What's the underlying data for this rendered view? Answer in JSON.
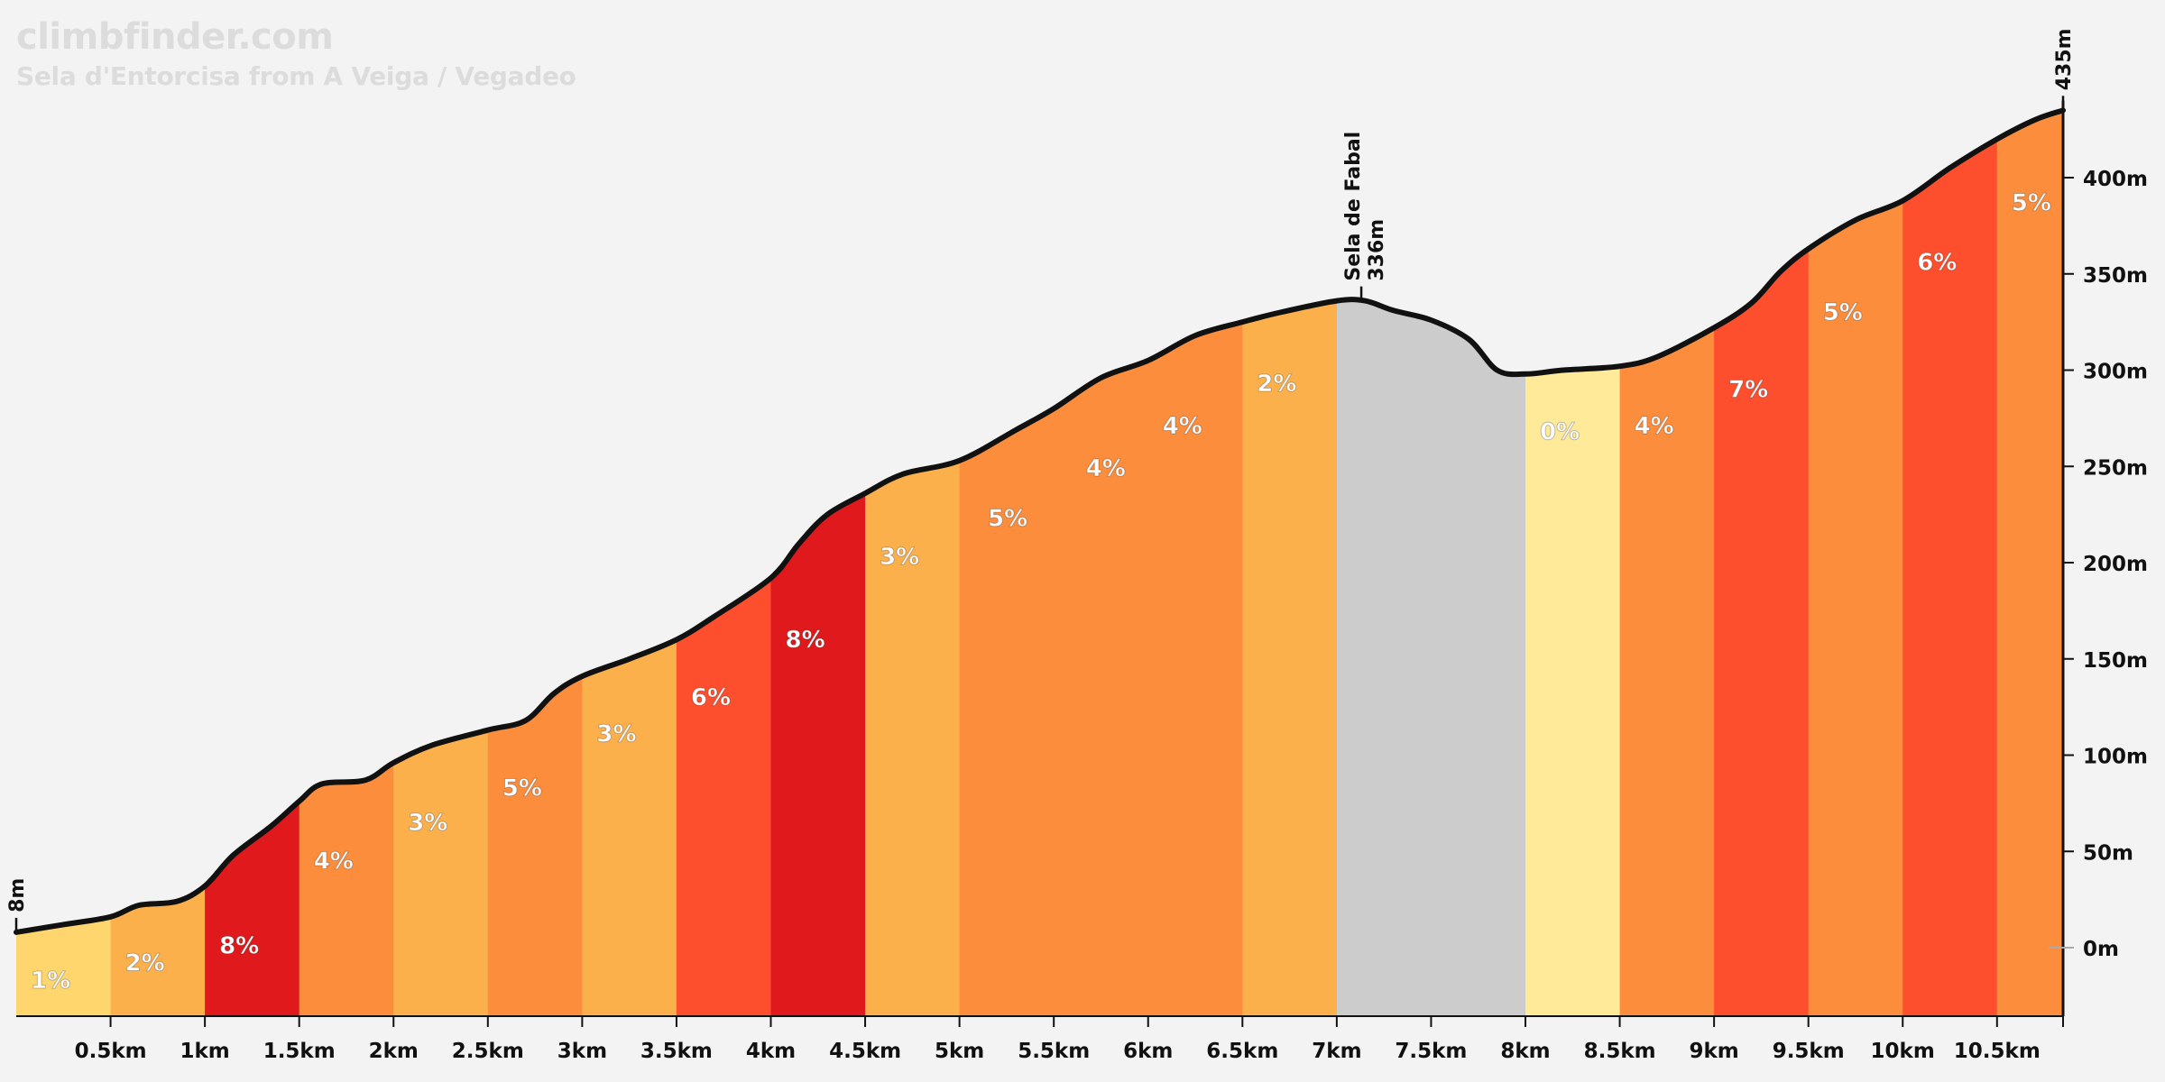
{
  "brand": "climbfinder.com",
  "subtitle": "Sela d'Entorcisa from A Veiga / Vegadeo",
  "chart_data": {
    "type": "area",
    "title": "Sela d'Entorcisa from A Veiga / Vegadeo",
    "xlabel": "",
    "ylabel": "",
    "xlim": [
      0,
      10.85
    ],
    "ylim": [
      -35,
      440
    ],
    "x_ticks": [
      0.5,
      1,
      1.5,
      2,
      2.5,
      3,
      3.5,
      4,
      4.5,
      5,
      5.5,
      6,
      6.5,
      7,
      7.5,
      8,
      8.5,
      9,
      9.5,
      10,
      10.5
    ],
    "x_tick_labels": [
      "0.5km",
      "1km",
      "1.5km",
      "2km",
      "2.5km",
      "3km",
      "3.5km",
      "4km",
      "4.5km",
      "5km",
      "5.5km",
      "6km",
      "6.5km",
      "7km",
      "7.5km",
      "8km",
      "8.5km",
      "9km",
      "9.5km",
      "10km",
      "10.5km"
    ],
    "y_ticks": [
      0,
      50,
      100,
      150,
      200,
      250,
      300,
      350,
      400
    ],
    "y_tick_labels": [
      "0m",
      "50m",
      "100m",
      "150m",
      "200m",
      "250m",
      "300m",
      "350m",
      "400m"
    ],
    "profile": [
      [
        0,
        8
      ],
      [
        0.25,
        12
      ],
      [
        0.5,
        16
      ],
      [
        0.65,
        22
      ],
      [
        0.85,
        24
      ],
      [
        1,
        32
      ],
      [
        1.15,
        48
      ],
      [
        1.35,
        63
      ],
      [
        1.5,
        76
      ],
      [
        1.62,
        85
      ],
      [
        1.85,
        87
      ],
      [
        2,
        96
      ],
      [
        2.2,
        105
      ],
      [
        2.5,
        113
      ],
      [
        2.7,
        118
      ],
      [
        2.85,
        132
      ],
      [
        3,
        141
      ],
      [
        3.25,
        150
      ],
      [
        3.5,
        160
      ],
      [
        3.7,
        172
      ],
      [
        4,
        192
      ],
      [
        4.15,
        210
      ],
      [
        4.3,
        225
      ],
      [
        4.5,
        236
      ],
      [
        4.7,
        246
      ],
      [
        5,
        253
      ],
      [
        5.3,
        269
      ],
      [
        5.5,
        280
      ],
      [
        5.75,
        296
      ],
      [
        6,
        305
      ],
      [
        6.25,
        318
      ],
      [
        6.5,
        325
      ],
      [
        6.7,
        330
      ],
      [
        7,
        336
      ],
      [
        7.15,
        336
      ],
      [
        7.3,
        331
      ],
      [
        7.5,
        326
      ],
      [
        7.7,
        316
      ],
      [
        7.85,
        300
      ],
      [
        8,
        298
      ],
      [
        8.2,
        300
      ],
      [
        8.5,
        302
      ],
      [
        8.7,
        307
      ],
      [
        9,
        322
      ],
      [
        9.2,
        335
      ],
      [
        9.35,
        351
      ],
      [
        9.5,
        363
      ],
      [
        9.75,
        378
      ],
      [
        10,
        388
      ],
      [
        10.25,
        405
      ],
      [
        10.5,
        420
      ],
      [
        10.7,
        430
      ],
      [
        10.85,
        435
      ]
    ],
    "segments": [
      {
        "start": 0,
        "end": 0.5,
        "grade": "1%",
        "color": "#FFD56E",
        "label_elev": 8
      },
      {
        "start": 0.5,
        "end": 1,
        "grade": "2%",
        "color": "#FCB04C",
        "label_elev": 17
      },
      {
        "start": 1,
        "end": 1.5,
        "grade": "8%",
        "color": "#E0191C",
        "label_elev": 26
      },
      {
        "start": 1.5,
        "end": 2,
        "grade": "4%",
        "color": "#FC8D3C",
        "label_elev": 70
      },
      {
        "start": 2,
        "end": 2.5,
        "grade": "3%",
        "color": "#FCB04C",
        "label_elev": 90
      },
      {
        "start": 2.5,
        "end": 3,
        "grade": "5%",
        "color": "#FC8D3C",
        "label_elev": 108
      },
      {
        "start": 3,
        "end": 3.5,
        "grade": "3%",
        "color": "#FCB04C",
        "label_elev": 136
      },
      {
        "start": 3.5,
        "end": 4,
        "grade": "6%",
        "color": "#FD4F2D",
        "label_elev": 155
      },
      {
        "start": 4,
        "end": 4.5,
        "grade": "8%",
        "color": "#E0191C",
        "label_elev": 185
      },
      {
        "start": 4.5,
        "end": 5,
        "grade": "3%",
        "color": "#FCB04C",
        "label_elev": 228
      },
      {
        "start": 5,
        "end": 6,
        "grade": "5%",
        "color": "#FC8D3C",
        "label_elev": 248,
        "label_x": 5.15
      },
      {
        "start": 5,
        "end": 6,
        "grade": "4%",
        "color": null,
        "label_elev": 274,
        "label_x": 5.67
      },
      {
        "start": 6,
        "end": 6.5,
        "grade": "4%",
        "color": "#FC8D3C",
        "label_elev": 296
      },
      {
        "start": 6.5,
        "end": 7,
        "grade": "2%",
        "color": "#FCB04C",
        "label_elev": 318
      },
      {
        "start": 7,
        "end": 8,
        "grade": "",
        "color": "#CCCCCC"
      },
      {
        "start": 8,
        "end": 8.5,
        "grade": "0%",
        "color": "#FFEA99",
        "label_elev": 293
      },
      {
        "start": 8.5,
        "end": 9,
        "grade": "4%",
        "color": "#FC8D3C",
        "label_elev": 296
      },
      {
        "start": 9,
        "end": 9.5,
        "grade": "7%",
        "color": "#FD4F2D",
        "label_elev": 315
      },
      {
        "start": 9.5,
        "end": 10,
        "grade": "5%",
        "color": "#FC8D3C",
        "label_elev": 355
      },
      {
        "start": 10,
        "end": 10.5,
        "grade": "6%",
        "color": "#FD4F2D",
        "label_elev": 381
      },
      {
        "start": 10.5,
        "end": 10.85,
        "grade": "5%",
        "color": "#FC8D3C",
        "label_elev": 412
      }
    ],
    "markers": [
      {
        "x": 0,
        "elev": 8,
        "text": "8m"
      },
      {
        "x": 7.13,
        "elev": 336,
        "name": "Sela de Fabal",
        "text": "336m"
      },
      {
        "x": 10.85,
        "elev": 435,
        "text": "435m"
      }
    ]
  }
}
